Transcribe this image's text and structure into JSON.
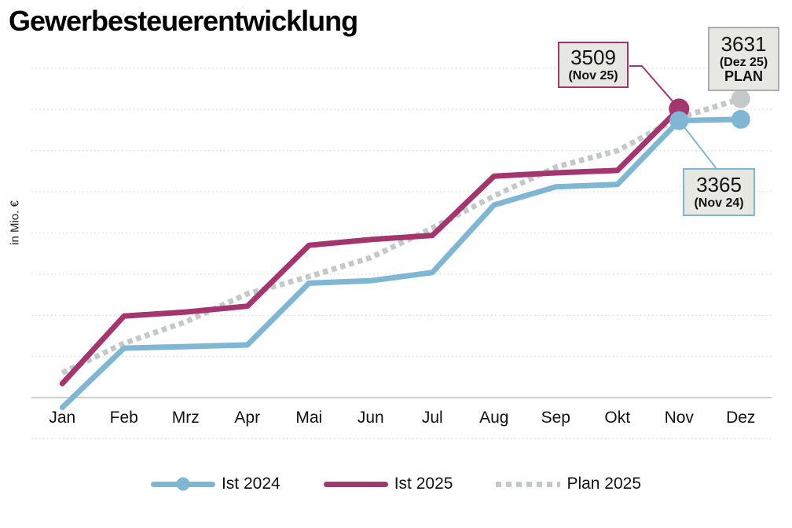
{
  "title": "Gewerbesteuerentwicklung",
  "y_axis_label": "in Mio. €",
  "chart_data": {
    "type": "line",
    "title": "Gewerbesteuerentwicklung",
    "xlabel": "",
    "ylabel": "in Mio. €",
    "categories": [
      "Jan",
      "Feb",
      "Mrz",
      "Apr",
      "Mai",
      "Jun",
      "Jul",
      "Aug",
      "Sep",
      "Okt",
      "Nov",
      "Dez"
    ],
    "series": [
      {
        "name": "Ist 2024",
        "color": "#7EB6D4",
        "line_style": "solid",
        "values": [
          -120,
          600,
          620,
          640,
          1390,
          1420,
          1520,
          2340,
          2560,
          2590,
          3365,
          3380
        ]
      },
      {
        "name": "Ist 2025",
        "color": "#A4366F",
        "line_style": "solid",
        "values": [
          170,
          990,
          1040,
          1110,
          1850,
          1920,
          1970,
          2690,
          2730,
          2760,
          3509,
          null
        ]
      },
      {
        "name": "Plan 2025",
        "color": "#C3C8C8",
        "line_style": "dotted",
        "values": [
          300,
          660,
          920,
          1260,
          1470,
          1700,
          2060,
          2450,
          2800,
          3000,
          3400,
          3631
        ]
      }
    ],
    "ylim": [
      -500,
      4000
    ],
    "gridline_values_dotted": [
      4000,
      3500,
      3000,
      2500,
      2000,
      1500,
      1000,
      500,
      -500
    ],
    "axis_line_value": 0,
    "grid_color": "#D9D9D9",
    "axis_color": "#BFBFBF",
    "grid": "dotted horizontal, no y tick labels",
    "legend_position": "bottom",
    "markers": [
      {
        "series": 1,
        "index": 10,
        "radius": 13
      },
      {
        "series": 0,
        "index": 10,
        "radius": 12
      },
      {
        "series": 0,
        "index": 11,
        "radius": 12
      },
      {
        "series": 2,
        "index": 11,
        "radius": 12
      }
    ]
  },
  "annotations": [
    {
      "value": "3509",
      "note": "(Nov 25)",
      "series": "Ist 2025",
      "border_color": "#A4366F",
      "fill": "#E8E8E3"
    },
    {
      "value": "3631",
      "note": "(Dez 25)",
      "note2": "PLAN",
      "series": "Plan 2025",
      "border_color": "#ACACAC",
      "fill": "#E8E8E3"
    },
    {
      "value": "3365",
      "note": "(Nov 24)",
      "series": "Ist 2024",
      "border_color": "#7EB6D4",
      "fill": "#E8E8E3"
    }
  ],
  "legend": {
    "items": [
      {
        "label": "Ist 2024"
      },
      {
        "label": "Ist 2025"
      },
      {
        "label": "Plan 2025"
      }
    ]
  }
}
